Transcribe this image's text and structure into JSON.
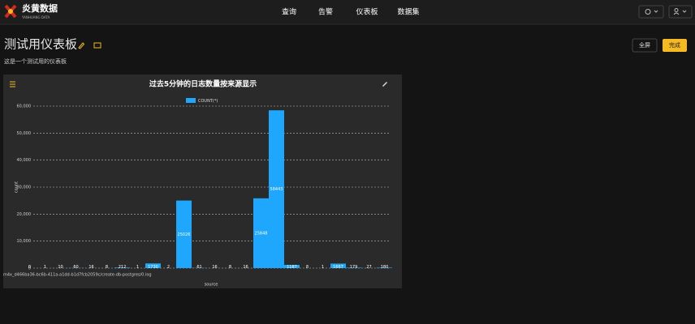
{
  "header": {
    "logo": {
      "name": "炎黄数据",
      "subtitle": "YANHUANG DATA"
    },
    "nav": [
      "查询",
      "告警",
      "仪表板",
      "数据集"
    ]
  },
  "page": {
    "title": "测试用仪表板",
    "description": "这是一个测试用的仪表板",
    "buttons": [
      "全屏",
      "完成"
    ]
  },
  "chart_data": {
    "type": "bar",
    "title": "过去5分钟的日志数量按来源显示",
    "x_label": "source",
    "y_label": "count",
    "categories": [
      "m4x_d466ba36-bc6b-411a-a1dd-b1d7fcb2059c/create-db-postgres/0.log",
      null,
      null,
      null,
      null,
      null,
      null,
      null,
      null,
      null,
      null,
      null,
      null,
      null,
      null,
      null,
      null,
      null,
      null,
      null,
      null,
      null,
      null,
      null
    ],
    "series": [
      {
        "name": "COUNT(*)",
        "color": "#1ea7fd",
        "values": [
          0,
          1,
          10,
          60,
          16,
          8,
          212,
          1,
          1730,
          2,
          25026,
          61,
          16,
          8,
          16,
          25848,
          58443,
          1187,
          8,
          1,
          1667,
          179,
          27,
          180
        ]
      }
    ],
    "ylim": [
      0,
      60000
    ],
    "yticks": [
      0,
      {
        "value": 10000,
        "label": "10,000"
      },
      {
        "value": 20000,
        "label": "20,000"
      },
      {
        "value": 30000,
        "label": "30,000"
      },
      {
        "value": 40000,
        "label": "40,000"
      },
      {
        "value": 50000,
        "label": "50,000"
      },
      {
        "value": 60000,
        "label": "60,000"
      }
    ],
    "grid": true
  }
}
